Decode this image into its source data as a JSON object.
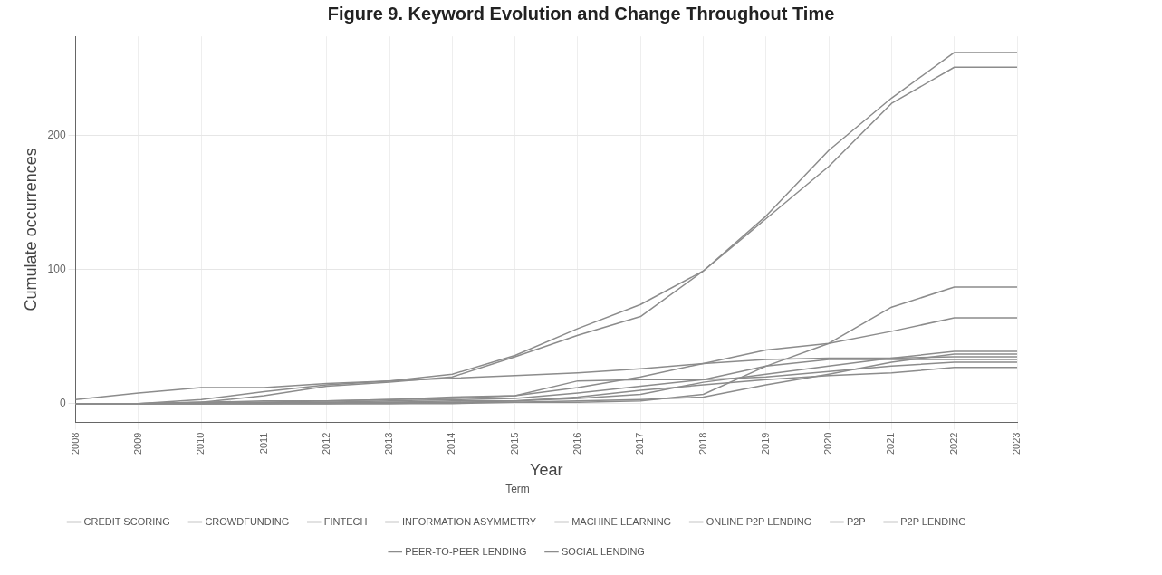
{
  "chart_data": {
    "type": "line",
    "title": "Figure 9. Keyword Evolution and Change Throughout Time",
    "xlabel": "Year",
    "ylabel": "Cumulate occurrences",
    "legend_title": "Term",
    "categories": [
      "2008",
      "2009",
      "2010",
      "2011",
      "2012",
      "2013",
      "2014",
      "2015",
      "2016",
      "2017",
      "2018",
      "2019",
      "2020",
      "2021",
      "2022",
      "2023"
    ],
    "series": [
      {
        "name": "CREDIT SCORING",
        "color": "#8c8c8c",
        "values": [
          0,
          0,
          1,
          1,
          2,
          3,
          5,
          6,
          17,
          18,
          18,
          20,
          24,
          28,
          31,
          31
        ]
      },
      {
        "name": "CROWDFUNDING",
        "color": "#8c8c8c",
        "values": [
          3,
          8,
          12,
          12,
          15,
          17,
          19,
          21,
          23,
          26,
          30,
          33,
          34,
          34,
          35,
          35
        ]
      },
      {
        "name": "FINTECH",
        "color": "#8c8c8c",
        "values": [
          0,
          0,
          3,
          9,
          14,
          17,
          22,
          36,
          56,
          74,
          99,
          140,
          189,
          228,
          262,
          262
        ]
      },
      {
        "name": "INFORMATION ASYMMETRY",
        "color": "#8c8c8c",
        "values": [
          0,
          0,
          0,
          1,
          1,
          2,
          3,
          4,
          8,
          13,
          18,
          28,
          33,
          33,
          33,
          33
        ]
      },
      {
        "name": "MACHINE LEARNING",
        "color": "#8c8c8c",
        "values": [
          0,
          0,
          0,
          0,
          0,
          0,
          0,
          1,
          1,
          2,
          7,
          28,
          45,
          72,
          87,
          87
        ]
      },
      {
        "name": "ONLINE P2P LENDING",
        "color": "#8c8c8c",
        "values": [
          0,
          0,
          0,
          0,
          1,
          1,
          2,
          2,
          4,
          7,
          16,
          22,
          28,
          34,
          39,
          39
        ]
      },
      {
        "name": "P2P",
        "color": "#8c8c8c",
        "values": [
          0,
          0,
          0,
          0,
          0,
          0,
          1,
          1,
          2,
          3,
          5,
          14,
          22,
          31,
          37,
          37
        ]
      },
      {
        "name": "P2P LENDING",
        "color": "#8c8c8c",
        "values": [
          0,
          0,
          1,
          6,
          13,
          16,
          20,
          35,
          51,
          65,
          99,
          138,
          177,
          224,
          251,
          251
        ]
      },
      {
        "name": "PEER-TO-PEER LENDING",
        "color": "#8c8c8c",
        "values": [
          0,
          0,
          1,
          2,
          2,
          3,
          4,
          6,
          12,
          20,
          30,
          40,
          45,
          54,
          64,
          64
        ]
      },
      {
        "name": "SOCIAL LENDING",
        "color": "#8c8c8c",
        "values": [
          0,
          0,
          0,
          0,
          0,
          1,
          1,
          2,
          5,
          10,
          14,
          18,
          21,
          23,
          27,
          27
        ]
      }
    ],
    "ylim": [
      -14,
      274
    ],
    "yticks": [
      0,
      100,
      200
    ],
    "grid": true,
    "legend": "bottom",
    "marker": "none",
    "line_style": "solid"
  }
}
